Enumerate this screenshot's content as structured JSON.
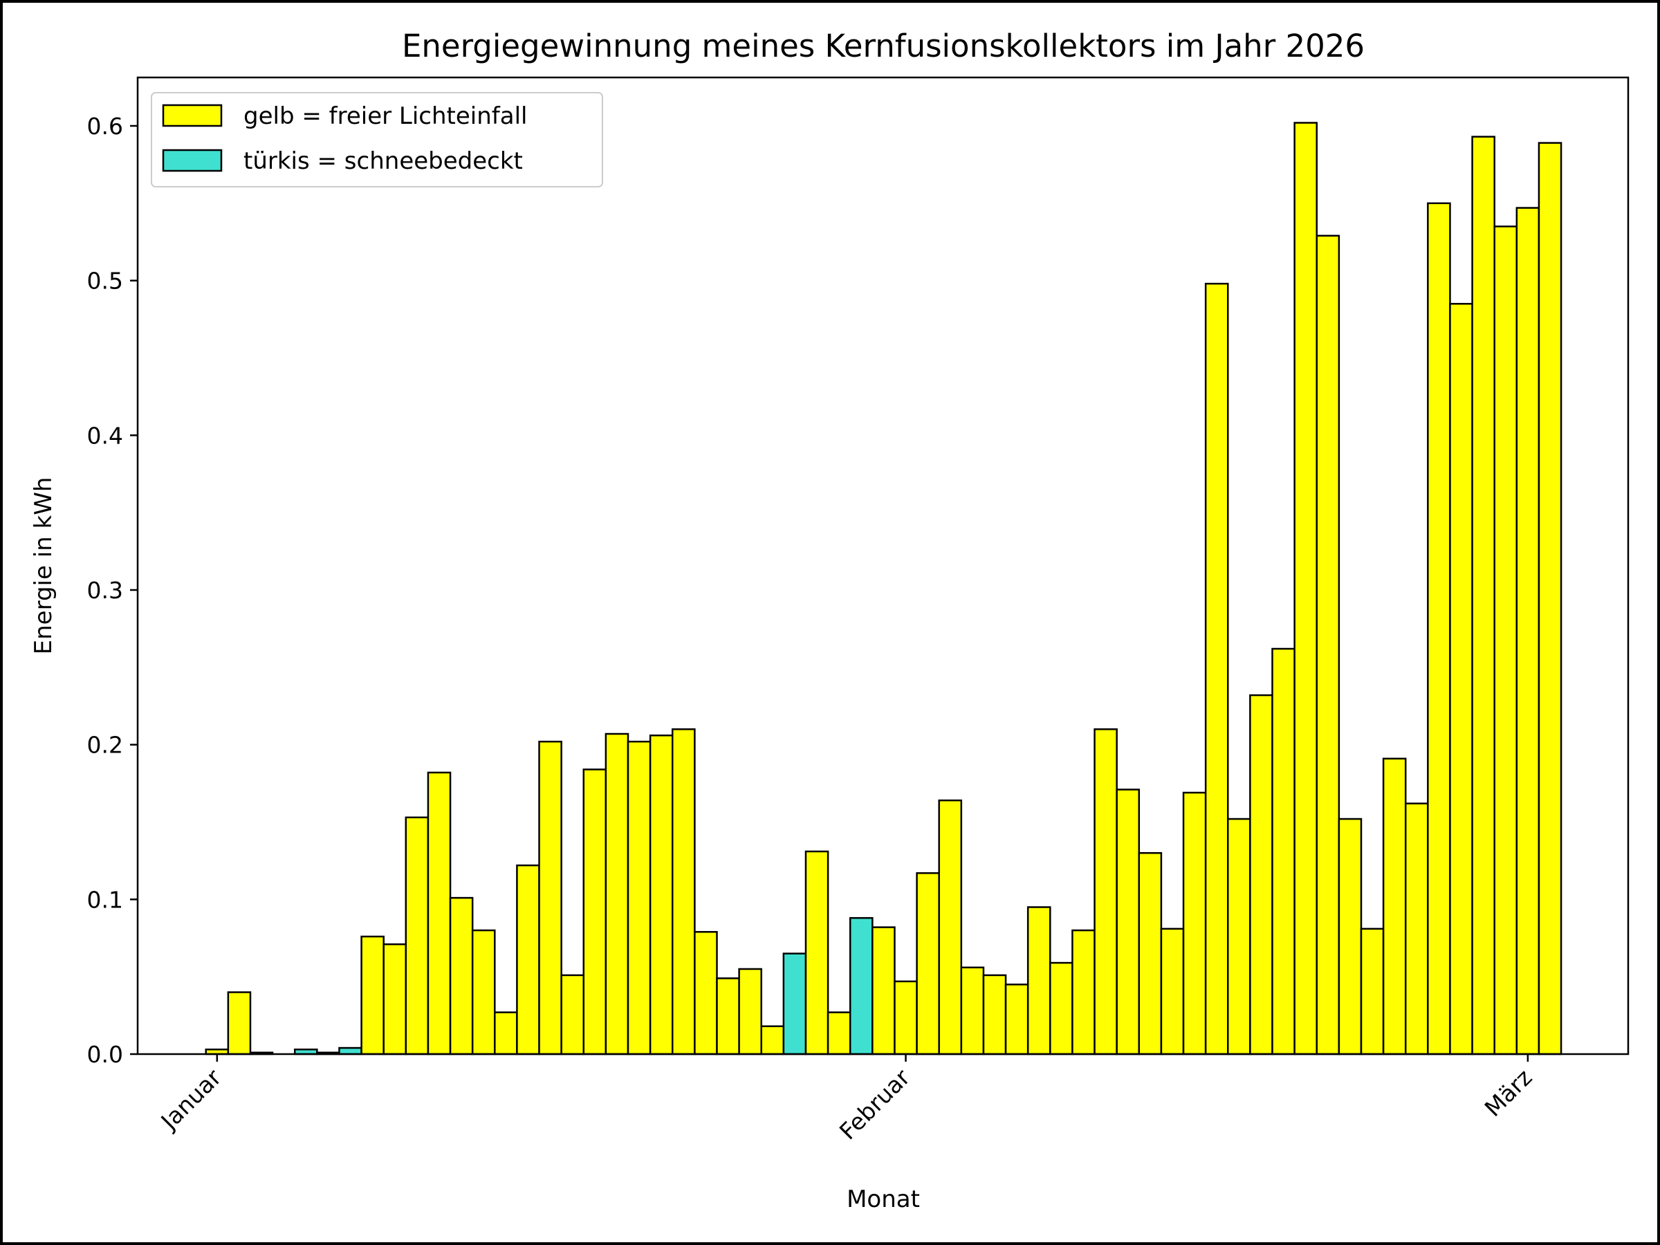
{
  "chart_data": {
    "type": "bar",
    "title": "Energiegewinnung meines Kernfusionskollektors im Jahr 2026",
    "xlabel": "Monat",
    "ylabel": "Energie in kWh",
    "ylim": [
      0,
      0.63
    ],
    "yticks": [
      "0.0",
      "0.1",
      "0.2",
      "0.3",
      "0.4",
      "0.5",
      "0.6"
    ],
    "xticks": [
      {
        "label": "Januar",
        "day_index": 0
      },
      {
        "label": "Februar",
        "day_index": 31
      },
      {
        "label": "März",
        "day_index": 59
      }
    ],
    "legend": {
      "placement": "top-left",
      "entries": [
        {
          "label": "gelb = freier Lichteinfall",
          "color": "#ffff00"
        },
        {
          "label": "türkis = schneebedeckt",
          "color": "#40e0d0"
        }
      ]
    },
    "colors": {
      "yellow": "#ffff00",
      "turquoise": "#40e0d0",
      "edge": "#000000"
    },
    "start_date": "2026-01-01",
    "values": [
      0.003,
      0.04,
      0.001,
      0.0,
      0.003,
      0.001,
      0.004,
      0.076,
      0.071,
      0.153,
      0.182,
      0.101,
      0.08,
      0.027,
      0.122,
      0.202,
      0.051,
      0.184,
      0.207,
      0.202,
      0.206,
      0.21,
      0.079,
      0.049,
      0.055,
      0.018,
      0.065,
      0.131,
      0.027,
      0.088,
      0.082,
      0.047,
      0.117,
      0.164,
      0.056,
      0.051,
      0.045,
      0.095,
      0.059,
      0.08,
      0.21,
      0.171,
      0.13,
      0.081,
      0.169,
      0.498,
      0.152,
      0.232,
      0.262,
      0.602,
      0.529,
      0.152,
      0.081,
      0.191,
      0.162,
      0.55,
      0.485,
      0.593,
      0.535,
      0.547,
      0.589
    ],
    "snow_covered": [
      4,
      6,
      26,
      29
    ]
  }
}
